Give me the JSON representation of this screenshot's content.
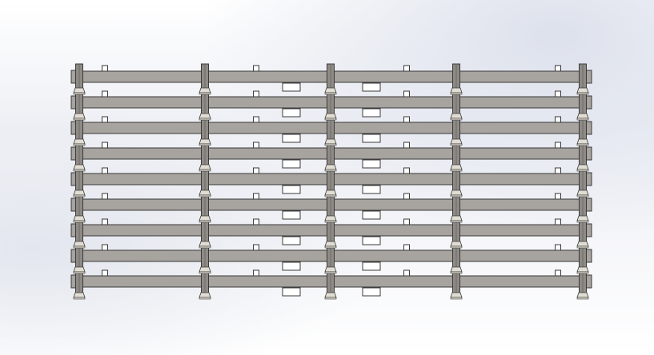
{
  "viewport": {
    "colors": {
      "beam": "#a7a39e",
      "post": "#8e8a86",
      "outline": "#3a3a3a",
      "clamp": "#e2ddd3",
      "plate": "#ffffff"
    },
    "model": {
      "beam_count": 9,
      "post_count": 5
    }
  }
}
